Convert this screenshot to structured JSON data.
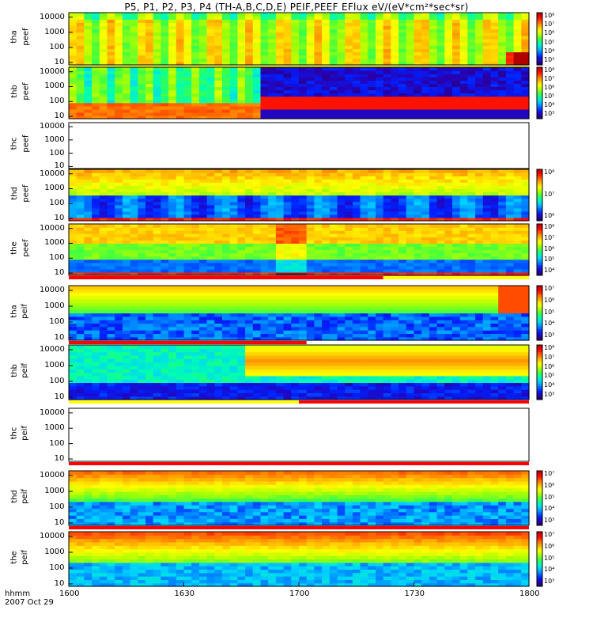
{
  "title": "P5, P1, P2, P3, P4 (TH-A,B,C,D,E) PEIF,PEEF EFlux eV/(eV*cm²*sec*sr)",
  "colors": {
    "quality_red": "#ff0000",
    "quality_yellow": "#ffff00",
    "colormap": [
      "#1a0050",
      "#2a00b0",
      "#0020ff",
      "#0080ff",
      "#00d0ff",
      "#00ffb0",
      "#40ff40",
      "#b0ff00",
      "#ffff00",
      "#ffb000",
      "#ff6000",
      "#ff0000",
      "#b00000"
    ]
  },
  "x_axis": {
    "unit_label": "hhmm",
    "date_label": "2007 Oct 29",
    "ticks": [
      {
        "label": "1600",
        "value": 0
      },
      {
        "label": "1630",
        "value": 30
      },
      {
        "label": "1700",
        "value": 60
      },
      {
        "label": "1730",
        "value": 90
      },
      {
        "label": "1800",
        "value": 120
      }
    ]
  },
  "chart_data": {
    "type": "heatmap",
    "x_range_minutes": [
      0,
      120
    ],
    "y_scale": "log",
    "panels": [
      {
        "probe": "tha",
        "product": "peef",
        "ylabel_top": "tha",
        "ylabel_bottom": "peef",
        "yticks": [
          "10000",
          "1000",
          "100",
          "10"
        ],
        "ylim": [
          7,
          20000
        ],
        "has_data": true,
        "cb_ticks": [
          "10⁸",
          "10⁷",
          "10⁶",
          "10⁵",
          "10⁴",
          "10³"
        ],
        "cb_min": 3,
        "cb_max": 8,
        "profile": "tha_e",
        "quality": [
          {
            "start": 0,
            "end": 120,
            "color": "#ffff00"
          }
        ]
      },
      {
        "probe": "thb",
        "product": "peef",
        "ylabel_top": "thb",
        "ylabel_bottom": "peef",
        "yticks": [
          "10000",
          "1000",
          "100",
          "10"
        ],
        "ylim": [
          7,
          20000
        ],
        "has_data": true,
        "cb_ticks": [
          "10⁸",
          "10⁷",
          "10⁶",
          "10⁵",
          "10⁴",
          "10³"
        ],
        "cb_min": 3,
        "cb_max": 8,
        "profile": "thb_e",
        "quality": []
      },
      {
        "probe": "thc",
        "product": "peef",
        "ylabel_top": "thc",
        "ylabel_bottom": "peef",
        "yticks": [
          "10000",
          "1000",
          "100",
          "10"
        ],
        "ylim": [
          7,
          20000
        ],
        "has_data": false,
        "cb_ticks": [],
        "profile": "none",
        "quality": []
      },
      {
        "probe": "thd",
        "product": "peef",
        "ylabel_top": "thd",
        "ylabel_bottom": "peef",
        "yticks": [
          "10000",
          "1000",
          "100",
          "10"
        ],
        "ylim": [
          7,
          20000
        ],
        "has_data": true,
        "cb_ticks": [
          "10⁸",
          "10⁷",
          "10⁶"
        ],
        "cb_min": 5.5,
        "cb_max": 8.5,
        "profile": "thd_e",
        "quality": []
      },
      {
        "probe": "the",
        "product": "peef",
        "ylabel_top": "the",
        "ylabel_bottom": "peef",
        "yticks": [
          "10000",
          "1000",
          "100",
          "10"
        ],
        "ylim": [
          7,
          20000
        ],
        "has_data": true,
        "cb_ticks": [
          "10⁸",
          "10⁷",
          "10⁶",
          "10⁵",
          "10⁴"
        ],
        "cb_min": 4,
        "cb_max": 8.5,
        "profile": "the_e",
        "quality": [
          {
            "start": 0,
            "end": 82,
            "color": "#ff0000"
          },
          {
            "start": 82,
            "end": 120,
            "color": "#ffff00"
          }
        ]
      },
      {
        "probe": "tha",
        "product": "peif",
        "ylabel_top": "tha",
        "ylabel_bottom": "peif",
        "yticks": [
          "10000",
          "1000",
          "100",
          "10"
        ],
        "ylim": [
          7,
          20000
        ],
        "has_data": true,
        "cb_ticks": [
          "10⁷",
          "10⁶",
          "10⁵",
          "10⁴",
          "10³"
        ],
        "cb_min": 3,
        "cb_max": 7.5,
        "profile": "tha_i",
        "quality": [
          {
            "start": 0,
            "end": 62,
            "color": "#ff0000"
          }
        ]
      },
      {
        "probe": "thb",
        "product": "peif",
        "ylabel_top": "thb",
        "ylabel_bottom": "peif",
        "yticks": [
          "10000",
          "1000",
          "100",
          "10"
        ],
        "ylim": [
          7,
          20000
        ],
        "has_data": true,
        "cb_ticks": [
          "10⁸",
          "10⁷",
          "10⁶",
          "10⁵",
          "10⁴",
          "10³"
        ],
        "cb_min": 3,
        "cb_max": 8,
        "profile": "thb_i",
        "quality": [
          {
            "start": 0,
            "end": 60,
            "color": "#ffff00"
          },
          {
            "start": 60,
            "end": 120,
            "color": "#ff0000"
          }
        ]
      },
      {
        "probe": "thc",
        "product": "peif",
        "ylabel_top": "thc",
        "ylabel_bottom": "peif",
        "yticks": [
          "10000",
          "1000",
          "100",
          "10"
        ],
        "ylim": [
          7,
          20000
        ],
        "has_data": false,
        "cb_ticks": [],
        "profile": "none",
        "quality": [
          {
            "start": 0,
            "end": 120,
            "color": "#ff0000"
          }
        ]
      },
      {
        "probe": "thd",
        "product": "peif",
        "ylabel_top": "thd",
        "ylabel_bottom": "peif",
        "yticks": [
          "10000",
          "1000",
          "100",
          "10"
        ],
        "ylim": [
          7,
          20000
        ],
        "has_data": true,
        "cb_ticks": [
          "10⁷",
          "10⁶",
          "10⁵",
          "10⁴",
          "10³"
        ],
        "cb_min": 3,
        "cb_max": 7.5,
        "profile": "thd_i",
        "quality": [
          {
            "start": 0,
            "end": 120,
            "color": "#ff0000"
          }
        ]
      },
      {
        "probe": "the",
        "product": "peif",
        "ylabel_top": "the",
        "ylabel_bottom": "peif",
        "yticks": [
          "10000",
          "1000",
          "100",
          "10"
        ],
        "ylim": [
          7,
          20000
        ],
        "has_data": true,
        "cb_ticks": [
          "10⁷",
          "10⁶",
          "10⁵",
          "10⁴",
          "10³"
        ],
        "cb_min": 3,
        "cb_max": 7.5,
        "profile": "the_i",
        "quality": []
      }
    ]
  }
}
